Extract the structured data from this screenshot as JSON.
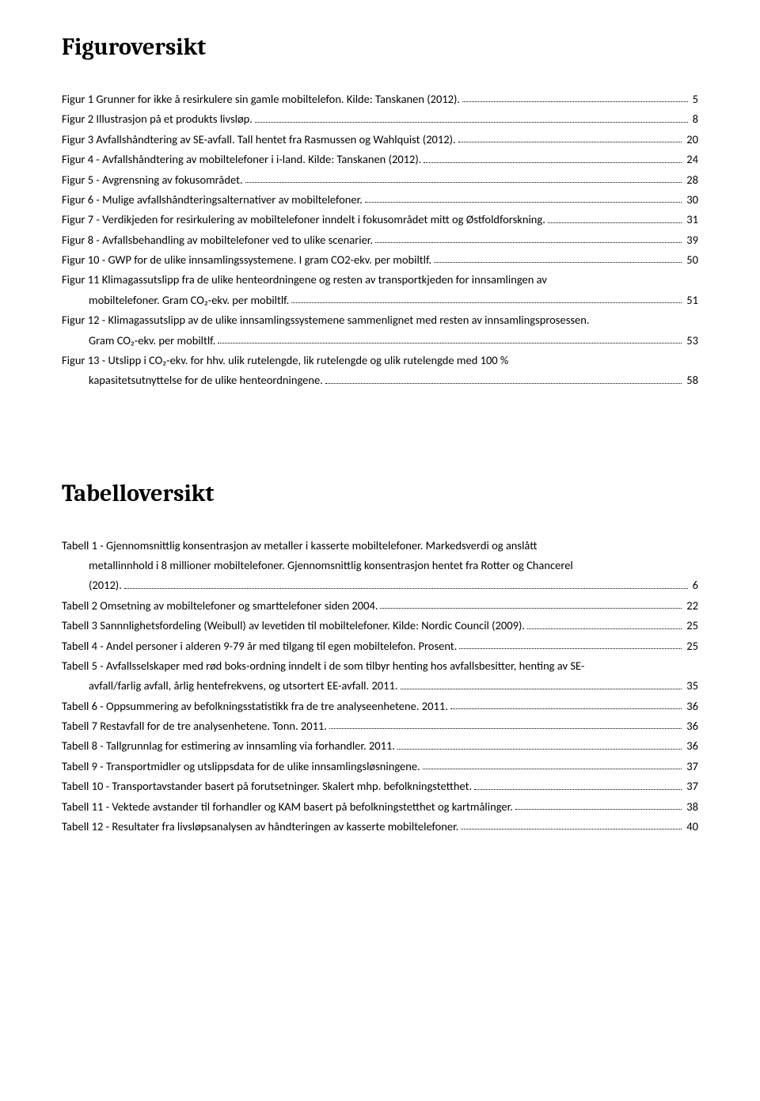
{
  "figures": {
    "heading": "Figuroversikt",
    "entries": [
      {
        "lines": [
          "Figur 1 Grunner for ikke å resirkulere sin gamle mobiltelefon. Kilde: Tanskanen (2012). "
        ],
        "page": "5",
        "indent": [
          false
        ]
      },
      {
        "lines": [
          "Figur 2 Illustrasjon på et produkts livsløp. "
        ],
        "page": "8",
        "indent": [
          false
        ]
      },
      {
        "lines": [
          "Figur 3 Avfallshåndtering av SE-avfall. Tall hentet fra Rasmussen og Wahlquist (2012)."
        ],
        "page": "20",
        "indent": [
          false
        ]
      },
      {
        "lines": [
          "Figur 4 - Avfallshåndtering av mobiltelefoner i i-land. Kilde: Tanskanen (2012)."
        ],
        "page": "24",
        "indent": [
          false
        ]
      },
      {
        "lines": [
          "Figur 5 - Avgrensning av fokusområdet."
        ],
        "page": "28",
        "indent": [
          false
        ]
      },
      {
        "lines": [
          "Figur 6 - Mulige avfallshåndteringsalternativer av mobiltelefoner."
        ],
        "page": "30",
        "indent": [
          false
        ]
      },
      {
        "lines": [
          "Figur 7 - Verdikjeden for resirkulering av mobiltelefoner inndelt i fokusområdet mitt og Østfoldforskning. "
        ],
        "page": "31",
        "indent": [
          false
        ]
      },
      {
        "lines": [
          "Figur 8 - Avfallsbehandling av mobiltelefoner ved to ulike scenarier. "
        ],
        "page": "39",
        "indent": [
          false
        ]
      },
      {
        "lines": [
          "Figur 10 - GWP for de ulike innsamlingssystemene. I gram CO2-ekv. per mobiltlf. "
        ],
        "page": "50",
        "indent": [
          false
        ]
      },
      {
        "lines": [
          "Figur 11 Klimagassutslipp fra de ulike henteordningene og resten av transportkjeden for innsamlingen av",
          "mobiltelefoner. Gram CO₂-ekv. per mobiltlf."
        ],
        "page": "51",
        "indent": [
          false,
          true
        ]
      },
      {
        "lines": [
          "Figur 12 - Klimagassutslipp av de ulike innsamlingssystemene sammenlignet med resten av innsamlingsprosessen.",
          "Gram CO₂-ekv. per mobiltlf."
        ],
        "page": "53",
        "indent": [
          false,
          true
        ]
      },
      {
        "lines": [
          "Figur 13 -  Utslipp i CO₂-ekv. for hhv. ulik rutelengde, lik rutelengde og ulik rutelengde med 100 %",
          "kapasitetsutnyttelse for de ulike henteordningene."
        ],
        "page": "58",
        "indent": [
          false,
          true
        ]
      }
    ]
  },
  "tables": {
    "heading": "Tabelloversikt",
    "entries": [
      {
        "lines": [
          "Tabell 1 - Gjennomsnittlig konsentrasjon av metaller i kasserte mobiltelefoner. Markedsverdi og anslått",
          "metallinnhold i 8 millioner mobiltelefoner. Gjennomsnittlig konsentrasjon hentet fra Rotter og Chancerel",
          "(2012)."
        ],
        "page": "6",
        "indent": [
          false,
          true,
          true
        ]
      },
      {
        "lines": [
          "Tabell 2 Omsetning av mobiltelefoner og smarttelefoner siden 2004."
        ],
        "page": "22",
        "indent": [
          false
        ]
      },
      {
        "lines": [
          "Tabell 3 Sannnlighetsfordeling (Weibull) av levetiden til mobiltelefoner. Kilde: Nordic Council (2009). "
        ],
        "page": "25",
        "indent": [
          false
        ]
      },
      {
        "lines": [
          "Tabell 4 - Andel personer i alderen 9-79 år med tilgang til egen mobiltelefon. Prosent. "
        ],
        "page": "25",
        "indent": [
          false
        ]
      },
      {
        "lines": [
          "Tabell 5 - Avfallsselskaper med rød boks-ordning inndelt i de som tilbyr henting hos avfallsbesitter, henting av SE-",
          "avfall/farlig avfall, årlig hentefrekvens, og utsortert EE-avfall. 2011."
        ],
        "page": "35",
        "indent": [
          false,
          true
        ]
      },
      {
        "lines": [
          "Tabell 6 - Oppsummering av befolkningsstatistikk fra de tre analyseenhetene. 2011. "
        ],
        "page": "36",
        "indent": [
          false
        ]
      },
      {
        "lines": [
          "Tabell 7 Restavfall for de tre analysenhetene. Tonn. 2011. "
        ],
        "page": "36",
        "indent": [
          false
        ]
      },
      {
        "lines": [
          "Tabell 8 - Tallgrunnlag for estimering av innsamling via forhandler. 2011. "
        ],
        "page": "36",
        "indent": [
          false
        ]
      },
      {
        "lines": [
          "Tabell 9 - Transportmidler og utslippsdata for de ulike innsamlingsløsningene. "
        ],
        "page": "37",
        "indent": [
          false
        ]
      },
      {
        "lines": [
          "Tabell 10 - Transportavstander basert på forutsetninger. Skalert mhp. befolkningstetthet. "
        ],
        "page": "37",
        "indent": [
          false
        ]
      },
      {
        "lines": [
          "Tabell 11 - Vektede avstander til forhandler og KAM basert på befolkningstetthet og kartmålinger. "
        ],
        "page": "38",
        "indent": [
          false
        ]
      },
      {
        "lines": [
          "Tabell 12 - Resultater fra livsløpsanalysen av håndteringen av kasserte mobiltelefoner. "
        ],
        "page": "40",
        "indent": [
          false
        ]
      }
    ]
  }
}
